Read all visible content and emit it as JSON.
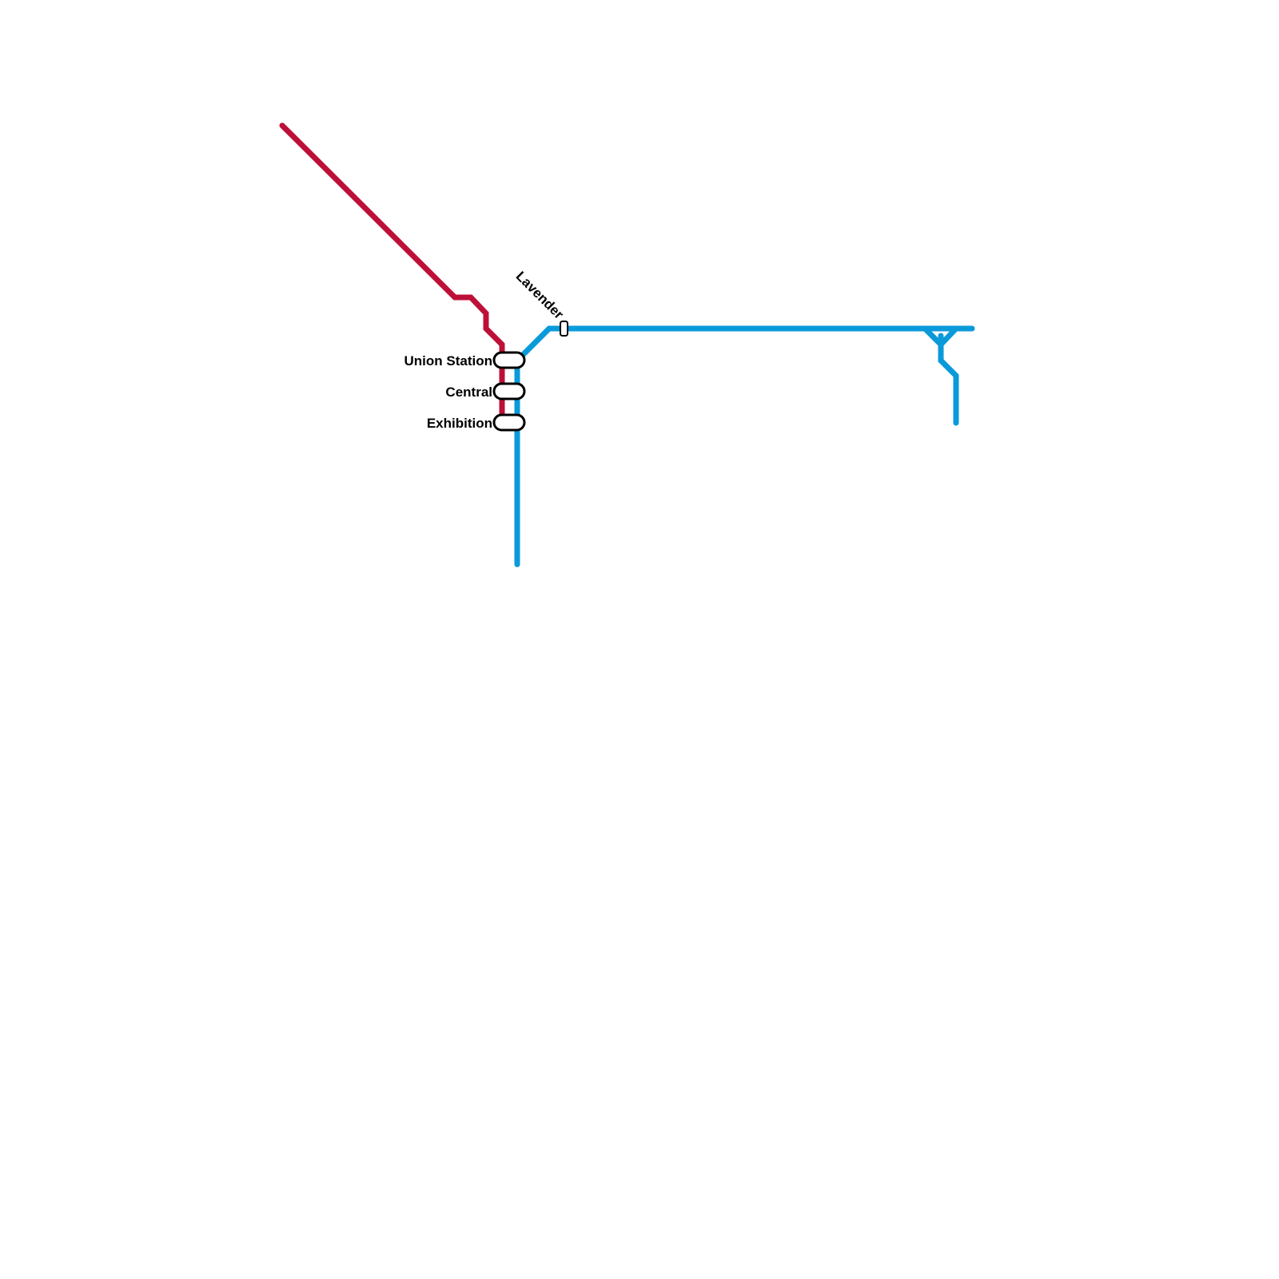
{
  "lines": [
    {
      "id": "red",
      "color": "#BD1038"
    },
    {
      "id": "blue",
      "color": "#0A9ADA"
    }
  ],
  "stations": [
    {
      "name": "Union Station"
    },
    {
      "name": "Central"
    },
    {
      "name": "Exhibition"
    },
    {
      "name": "Lavender"
    }
  ]
}
